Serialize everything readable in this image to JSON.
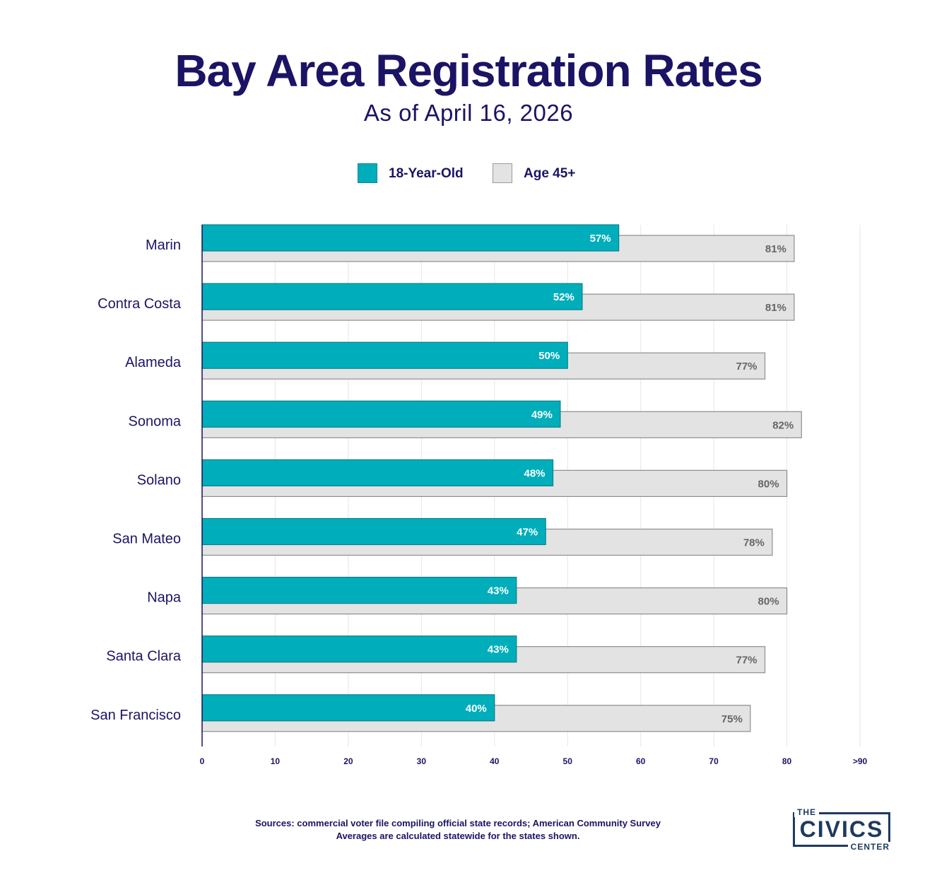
{
  "header": {
    "title": "Bay Area Registration Rates",
    "subtitle": "As of April 16, 2026"
  },
  "legend": {
    "items": [
      {
        "label": "18-Year-Old",
        "color": "#00aebb"
      },
      {
        "label": "Age 45+",
        "color": "#e3e3e3"
      }
    ]
  },
  "chart_data": {
    "type": "bar",
    "orientation": "horizontal",
    "title": "Bay Area Registration Rates",
    "subtitle": "As of April 16, 2026",
    "categories": [
      "Marin",
      "Contra Costa",
      "Alameda",
      "Sonoma",
      "Solano",
      "San Mateo",
      "Napa",
      "Santa Clara",
      "San Francisco"
    ],
    "series": [
      {
        "name": "18-Year-Old",
        "color": "#00aebb",
        "values": [
          57,
          52,
          50,
          49,
          48,
          47,
          43,
          43,
          40
        ],
        "labels": [
          "57%",
          "52%",
          "50%",
          "49%",
          "48%",
          "47%",
          "43%",
          "43%",
          "40%"
        ]
      },
      {
        "name": "Age 45+",
        "color": "#e3e3e3",
        "values": [
          81,
          81,
          77,
          82,
          80,
          78,
          80,
          77,
          75
        ],
        "labels": [
          "81%",
          "81%",
          "77%",
          "82%",
          "80%",
          "78%",
          "80%",
          "77%",
          "75%"
        ]
      }
    ],
    "xlim": [
      0,
      90
    ],
    "xticks": [
      0,
      10,
      20,
      30,
      40,
      50,
      60,
      70,
      80,
      90
    ],
    "xtick_labels": [
      "0",
      "10",
      "20",
      "30",
      "40",
      "50",
      "60",
      "70",
      "80",
      ">90"
    ],
    "xlabel": "",
    "ylabel": "",
    "grid": true,
    "legend_position": "top-center"
  },
  "footer": {
    "line1": "Sources: commercial voter file compiling official state records; American Community Survey",
    "line2": "Averages are calculated statewide for the states shown."
  },
  "logo": {
    "top": "THE",
    "middle": "CIVICS",
    "bottom": "CENTER"
  }
}
